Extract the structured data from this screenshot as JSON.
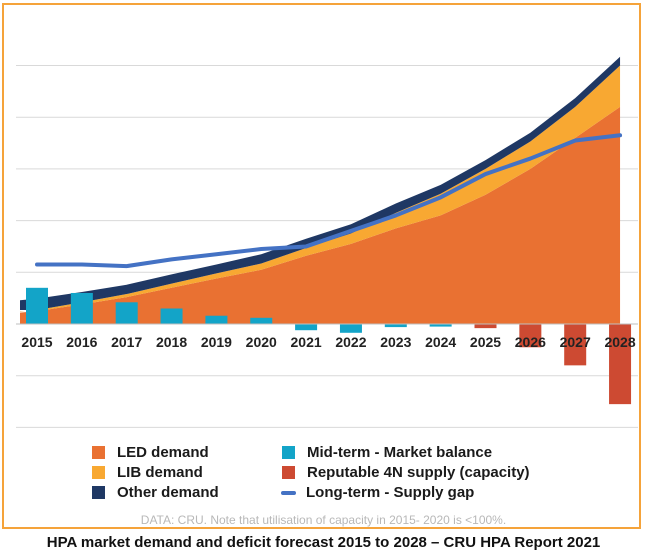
{
  "chart_data": {
    "type": "area",
    "categories": [
      "2015",
      "2016",
      "2017",
      "2018",
      "2019",
      "2020",
      "2021",
      "2022",
      "2023",
      "2024",
      "2025",
      "2026",
      "2027",
      "2028"
    ],
    "ylim": [
      -2.0,
      5.2
    ],
    "stacked_areas": [
      {
        "name": "LED demand",
        "color": "#e97132",
        "values": [
          0.25,
          0.38,
          0.52,
          0.7,
          0.88,
          1.05,
          1.32,
          1.55,
          1.85,
          2.1,
          2.5,
          3.0,
          3.6,
          4.2
        ]
      },
      {
        "name": "LIB demand",
        "color": "#f8a832",
        "values": [
          0.02,
          0.04,
          0.06,
          0.08,
          0.1,
          0.12,
          0.15,
          0.2,
          0.3,
          0.42,
          0.5,
          0.53,
          0.6,
          0.8
        ]
      },
      {
        "name": "Other demand",
        "color": "#1f3864",
        "values": [
          0.22,
          0.2,
          0.18,
          0.18,
          0.17,
          0.18,
          0.18,
          0.18,
          0.18,
          0.17,
          0.17,
          0.17,
          0.17,
          0.17
        ]
      }
    ],
    "bars": [
      {
        "name": "Mid-term - Market balance",
        "color": "#13a4c8",
        "values": [
          0.7,
          0.6,
          0.42,
          0.3,
          0.16,
          0.12,
          -0.12,
          -0.17,
          -0.06,
          -0.05,
          null,
          null,
          null,
          null
        ]
      },
      {
        "name": "Reputable 4N supply (capacity)",
        "color": "#cd4a32",
        "values": [
          null,
          null,
          null,
          null,
          null,
          null,
          null,
          null,
          null,
          null,
          -0.08,
          -0.45,
          -0.8,
          -1.55
        ]
      }
    ],
    "line": {
      "name": "Long-term - Supply gap",
      "color": "#4472c4",
      "values": [
        1.15,
        1.15,
        1.12,
        1.25,
        1.35,
        1.45,
        1.5,
        1.8,
        2.1,
        2.45,
        2.9,
        3.2,
        3.55,
        3.65
      ]
    }
  },
  "legend": [
    {
      "label": "LED demand",
      "kind": "square",
      "color": "#e97132"
    },
    {
      "label": "LIB demand",
      "kind": "square",
      "color": "#f8a832"
    },
    {
      "label": "Other demand",
      "kind": "square",
      "color": "#1f3864"
    },
    {
      "label": "Mid-term - Market balance",
      "kind": "square",
      "color": "#13a4c8"
    },
    {
      "label": "Reputable 4N supply (capacity)",
      "kind": "square",
      "color": "#cd4a32"
    },
    {
      "label": "Long-term - Supply gap",
      "kind": "line",
      "color": "#4472c4"
    }
  ],
  "note": "DATA: CRU. Note that utilisation of capacity in 2015- 2020 is <100%.",
  "caption": "HPA market demand and deficit forecast 2015 to 2028 – CRU HPA Report 2021"
}
